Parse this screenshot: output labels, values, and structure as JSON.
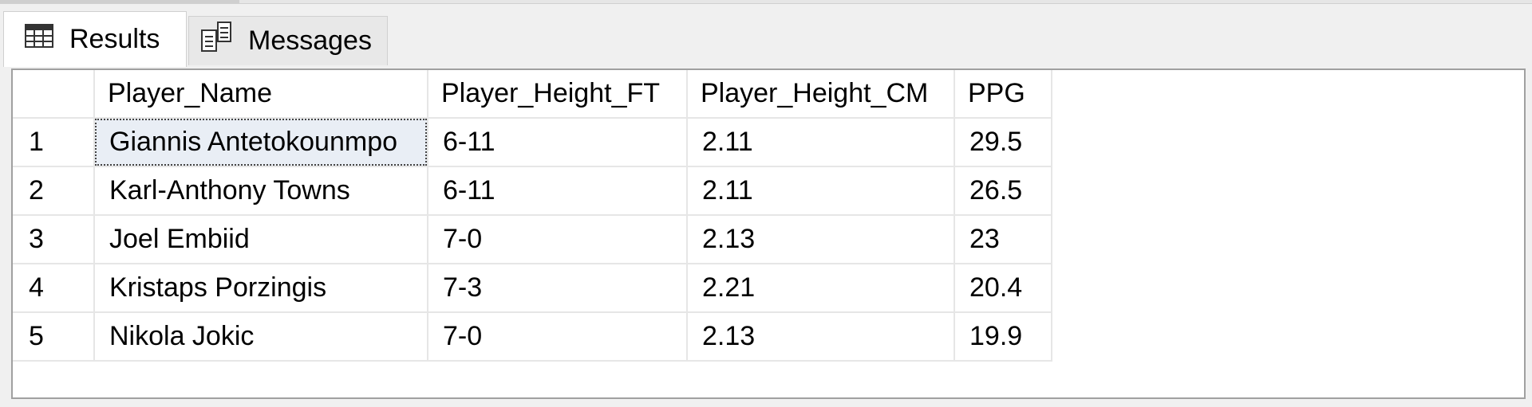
{
  "tabs": {
    "results_label": "Results",
    "messages_label": "Messages"
  },
  "grid": {
    "columns": [
      "Player_Name",
      "Player_Height_FT",
      "Player_Height_CM",
      "PPG"
    ],
    "rows": [
      {
        "num": "1",
        "name": "Giannis Antetokounmpo",
        "ft": "6-11",
        "cm": "2.11",
        "ppg": "29.5"
      },
      {
        "num": "2",
        "name": "Karl-Anthony Towns",
        "ft": "6-11",
        "cm": "2.11",
        "ppg": "26.5"
      },
      {
        "num": "3",
        "name": "Joel Embiid",
        "ft": "7-0",
        "cm": "2.13",
        "ppg": "23"
      },
      {
        "num": "4",
        "name": "Kristaps Porzingis",
        "ft": "7-3",
        "cm": "2.21",
        "ppg": "20.4"
      },
      {
        "num": "5",
        "name": "Nikola Jokic",
        "ft": "7-0",
        "cm": "2.13",
        "ppg": "19.9"
      }
    ],
    "selected_cell": "Giannis Antetokounmpo"
  },
  "icons": {
    "results_tab": "grid-icon",
    "messages_tab": "messages-icon"
  },
  "colors": {
    "background": "#f0f0f0",
    "grid_background": "#ffffff",
    "selected_cell": "#e9eef5",
    "grid_lines": "#e6e6e6"
  }
}
